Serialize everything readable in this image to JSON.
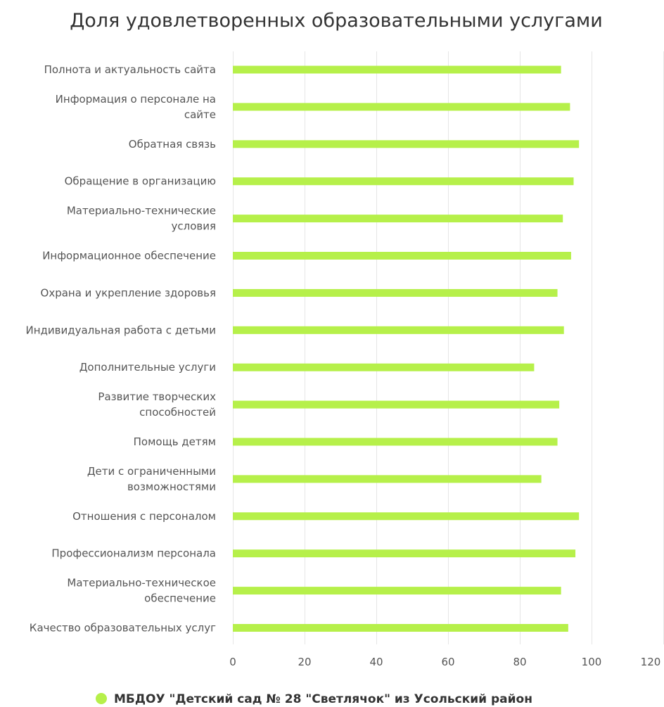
{
  "chart_data": {
    "type": "bar",
    "orientation": "horizontal",
    "title": "Доля удовлетворенных образовательными услугами",
    "categories": [
      [
        "Полнота и актуальность сайта"
      ],
      [
        "Информация о персонале на",
        "сайте"
      ],
      [
        "Обратная связь"
      ],
      [
        "Обращение в организацию"
      ],
      [
        "Материально-технические",
        "условия"
      ],
      [
        "Информационное обеспечение"
      ],
      [
        "Охрана и укрепление здоровья"
      ],
      [
        "Индивидуальная работа с детьми"
      ],
      [
        "Дополнительные услуги"
      ],
      [
        "Развитие творческих",
        "способностей"
      ],
      [
        "Помощь детям"
      ],
      [
        "Дети с ограниченными",
        "возможностями"
      ],
      [
        "Отношения с персоналом"
      ],
      [
        "Профессионализм персонала"
      ],
      [
        "Материально-техническое",
        "обеспечение"
      ],
      [
        "Качество образовательных услуг"
      ]
    ],
    "series": [
      {
        "name": "МБДОУ \"Детский сад № 28 \"Светлячок\" из Усольский район",
        "color": "#b6f04a",
        "values": [
          91.5,
          94,
          96.5,
          95,
          92,
          94.3,
          90.5,
          92.3,
          84,
          91,
          90.5,
          86,
          96.5,
          95.5,
          91.5,
          93.5
        ]
      }
    ],
    "xlim": [
      0,
      120
    ],
    "xticks": [
      0,
      20,
      40,
      60,
      80,
      100,
      120
    ],
    "grid": true,
    "legend_position": "bottom-center"
  }
}
